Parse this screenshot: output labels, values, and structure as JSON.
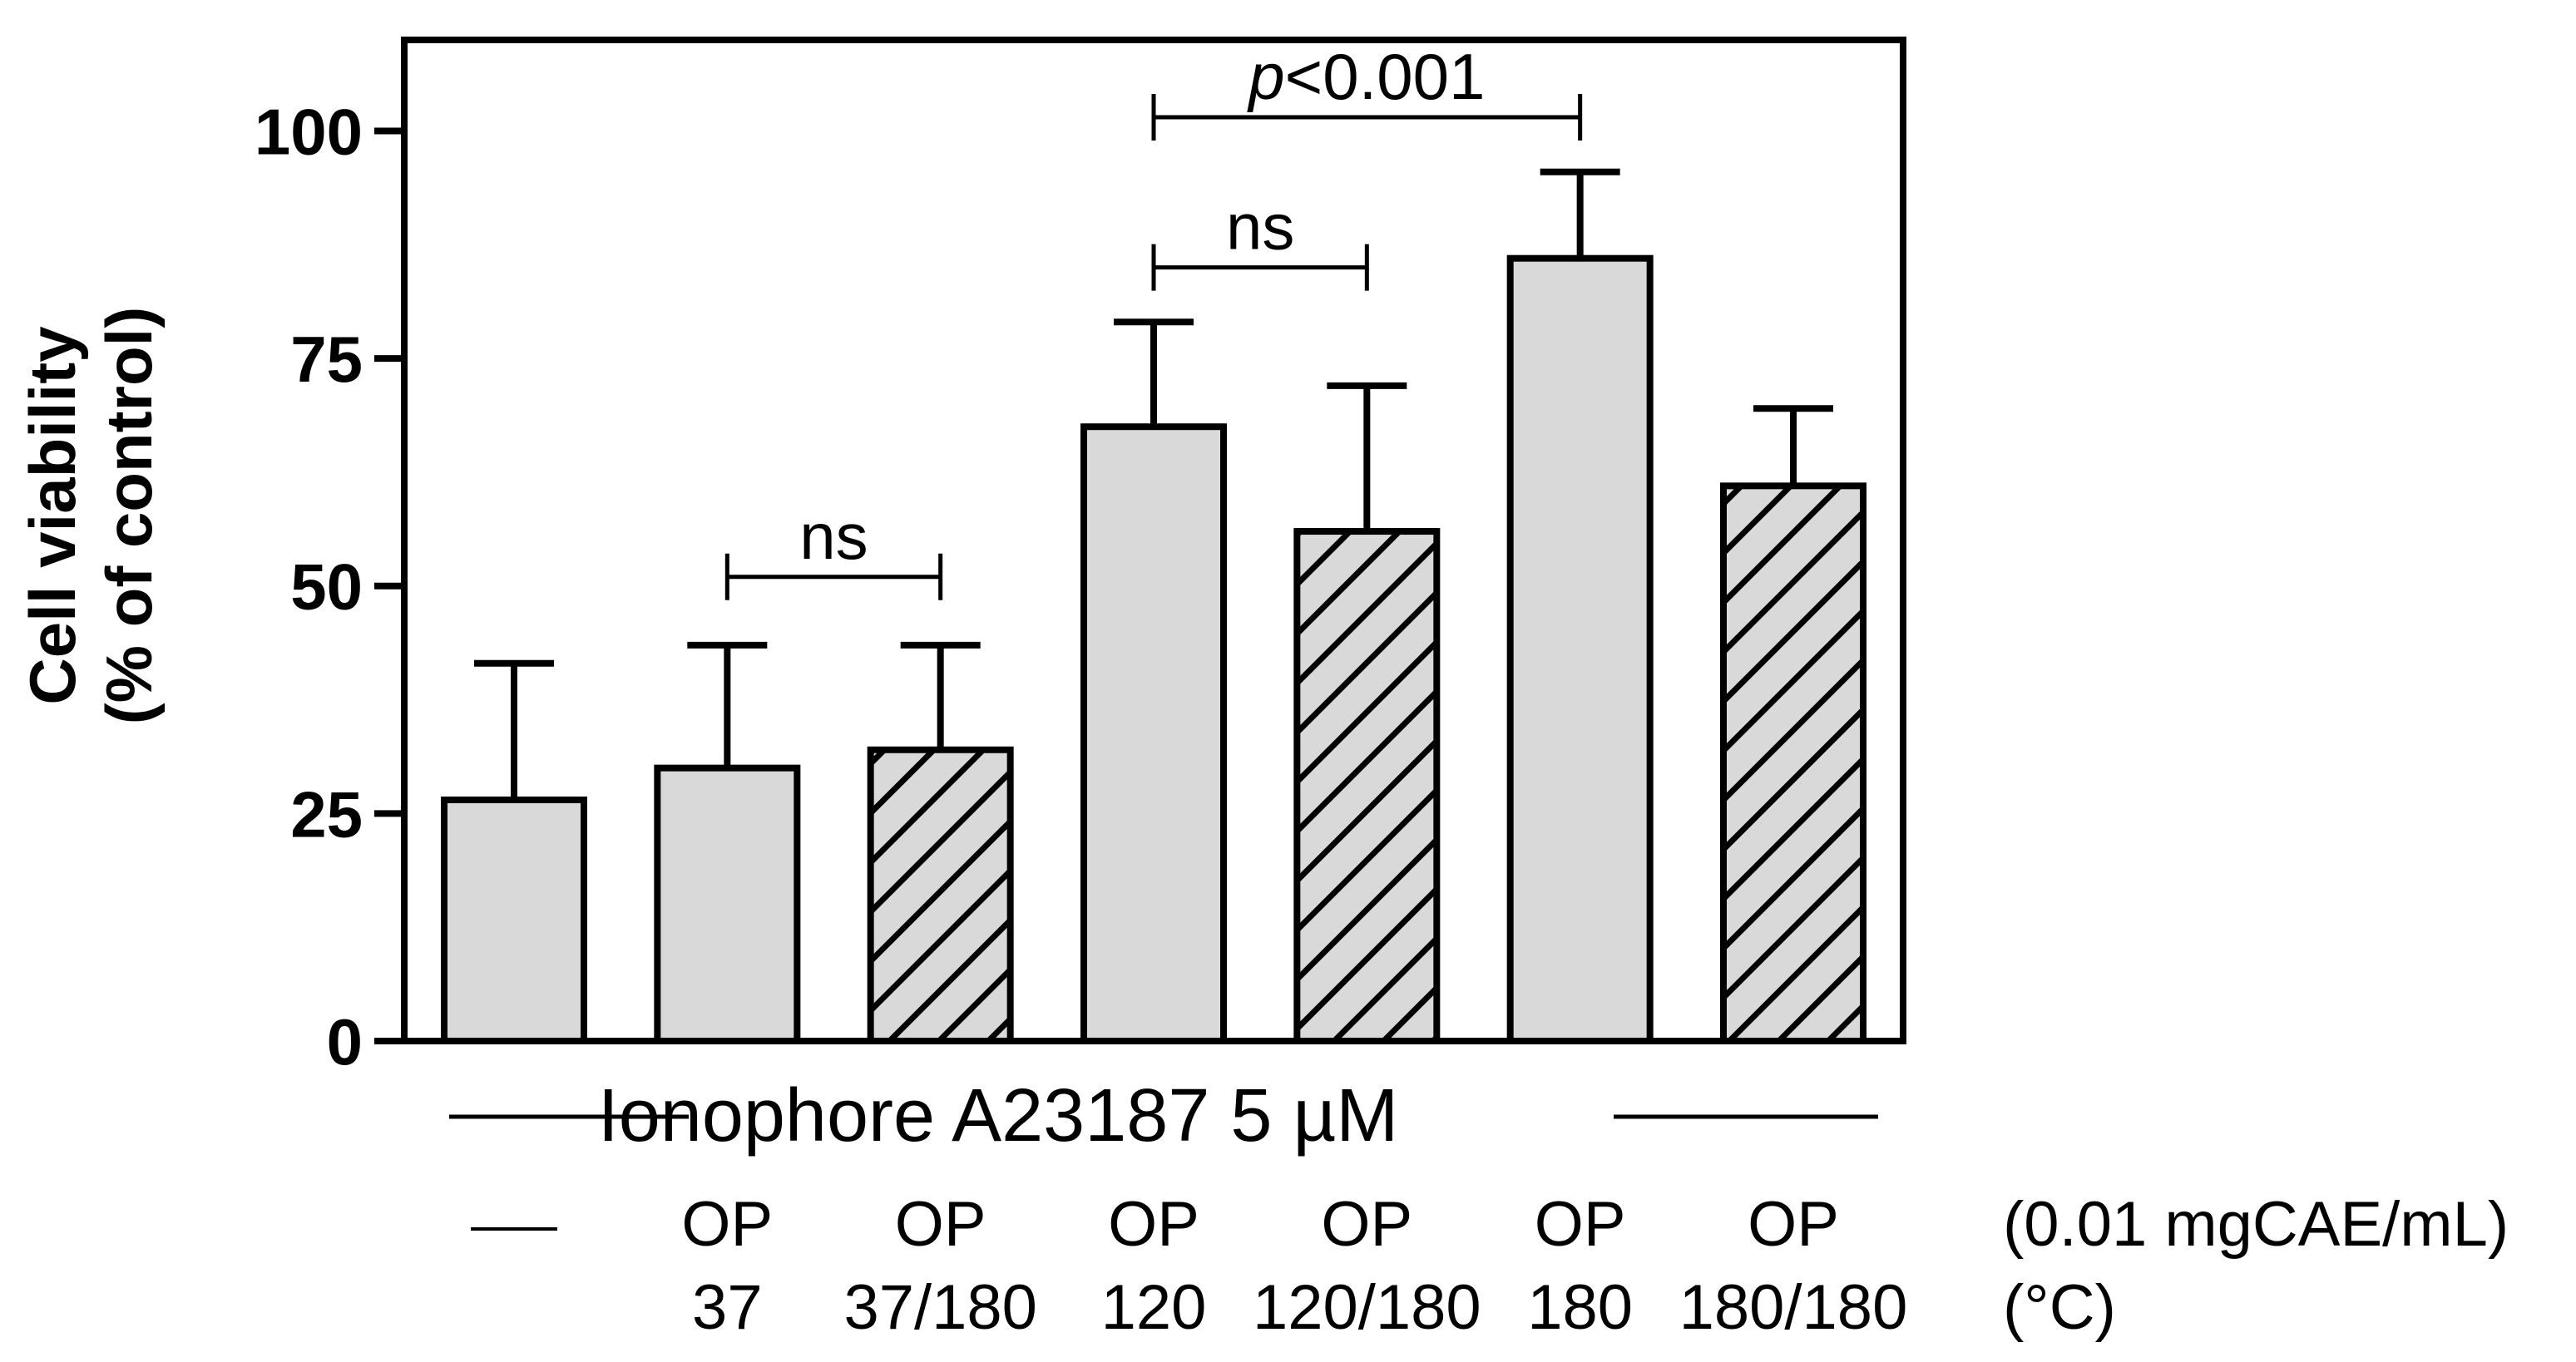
{
  "chart_data": {
    "type": "bar",
    "ylabel_line1": "Cell viability",
    "ylabel_line2": "(% of control)",
    "ylim": [
      0,
      110
    ],
    "yticks": [
      0,
      25,
      50,
      75,
      100
    ],
    "grid": false,
    "group_label": "Ionophore A23187 5 µM",
    "concentration_unit": "(0.01 mgCAE/mL)",
    "temperature_unit": "(°C)",
    "bars": [
      {
        "line1": "—",
        "line2": "",
        "value": 26.5,
        "error": 15,
        "pattern": "solid"
      },
      {
        "line1": "OP",
        "line2": "37",
        "value": 30,
        "error": 13.5,
        "pattern": "solid"
      },
      {
        "line1": "OP",
        "line2": "37/180",
        "value": 32,
        "error": 11.5,
        "pattern": "hatched"
      },
      {
        "line1": "OP",
        "line2": "120",
        "value": 67.5,
        "error": 11.5,
        "pattern": "solid"
      },
      {
        "line1": "OP",
        "line2": "120/180",
        "value": 56,
        "error": 16,
        "pattern": "hatched"
      },
      {
        "line1": "OP",
        "line2": "180",
        "value": 86,
        "error": 9.5,
        "pattern": "solid"
      },
      {
        "line1": "OP",
        "line2": "180/180",
        "value": 61,
        "error": 8.5,
        "pattern": "hatched"
      }
    ],
    "annotations": [
      {
        "from": 1,
        "to": 2,
        "label": "ns",
        "y": 51
      },
      {
        "from": 3,
        "to": 4,
        "label": "ns",
        "y": 85
      },
      {
        "from": 3,
        "to": 5,
        "label": "p<0.001",
        "label_italic": "p",
        "label_rest": "<0.001",
        "y": 101.5
      }
    ],
    "colors": {
      "bar_fill": "#d9d9d9",
      "stroke": "#000000"
    }
  }
}
